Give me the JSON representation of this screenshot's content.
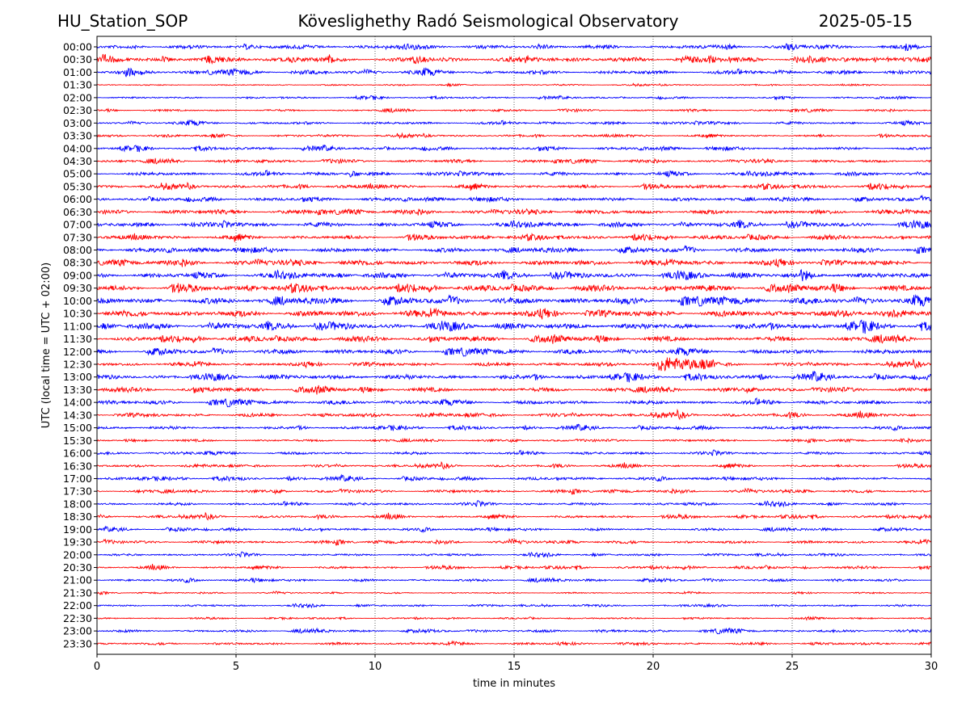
{
  "header": {
    "station": "HU_Station_SOP",
    "observatory": "Köveslighethy Radó Seismological Observatory",
    "date": "2025-05-15"
  },
  "chart_data": {
    "type": "line",
    "title": "Köveslighethy Radó Seismological Observatory",
    "xlabel": "time in minutes",
    "ylabel": "UTC (local time = UTC + 02:00)",
    "xlim": [
      0,
      30
    ],
    "xticks": [
      0,
      5,
      10,
      15,
      20,
      25,
      30
    ],
    "vertical_gridlines": "dotted",
    "rows": [
      "00:00",
      "00:30",
      "01:00",
      "01:30",
      "02:00",
      "02:30",
      "03:00",
      "03:30",
      "04:00",
      "04:30",
      "05:00",
      "05:30",
      "06:00",
      "06:30",
      "07:00",
      "07:30",
      "08:00",
      "08:30",
      "09:00",
      "09:30",
      "10:00",
      "10:30",
      "11:00",
      "11:30",
      "12:00",
      "12:30",
      "13:00",
      "13:30",
      "14:00",
      "14:30",
      "15:00",
      "15:30",
      "16:00",
      "16:30",
      "17:00",
      "17:30",
      "18:00",
      "18:30",
      "19:00",
      "19:30",
      "20:00",
      "20:30",
      "21:00",
      "21:30",
      "22:00",
      "22:30",
      "23:00",
      "23:30"
    ],
    "trace_colors": [
      "#0000ff",
      "#ff0000"
    ],
    "relative_amplitude": [
      0.55,
      0.7,
      0.6,
      0.2,
      0.28,
      0.3,
      0.42,
      0.35,
      0.45,
      0.45,
      0.55,
      0.55,
      0.55,
      0.65,
      0.7,
      0.6,
      0.7,
      0.8,
      0.8,
      0.85,
      0.95,
      1.0,
      0.9,
      0.75,
      0.7,
      0.55,
      0.7,
      0.65,
      0.6,
      0.55,
      0.45,
      0.35,
      0.42,
      0.4,
      0.45,
      0.45,
      0.42,
      0.42,
      0.4,
      0.45,
      0.35,
      0.38,
      0.4,
      0.22,
      0.3,
      0.22,
      0.4,
      0.4
    ],
    "events": [
      {
        "row": "12:30",
        "onset_min": 20.2,
        "duration_min": 2.0,
        "amplitude": 3.2
      },
      {
        "row": "01:00",
        "onset_min": 1.0,
        "duration_min": 0.4,
        "amplitude": 1.8
      },
      {
        "row": "05:00",
        "onset_min": 9.1,
        "duration_min": 0.3,
        "amplitude": 1.5
      },
      {
        "row": "09:00",
        "onset_min": 25.3,
        "duration_min": 0.4,
        "amplitude": 1.5
      },
      {
        "row": "15:30",
        "onset_min": 28.9,
        "duration_min": 0.15,
        "amplitude": 1.6
      },
      {
        "row": "00:30",
        "onset_min": 8.3,
        "duration_min": 0.3,
        "amplitude": 1.5
      }
    ]
  }
}
